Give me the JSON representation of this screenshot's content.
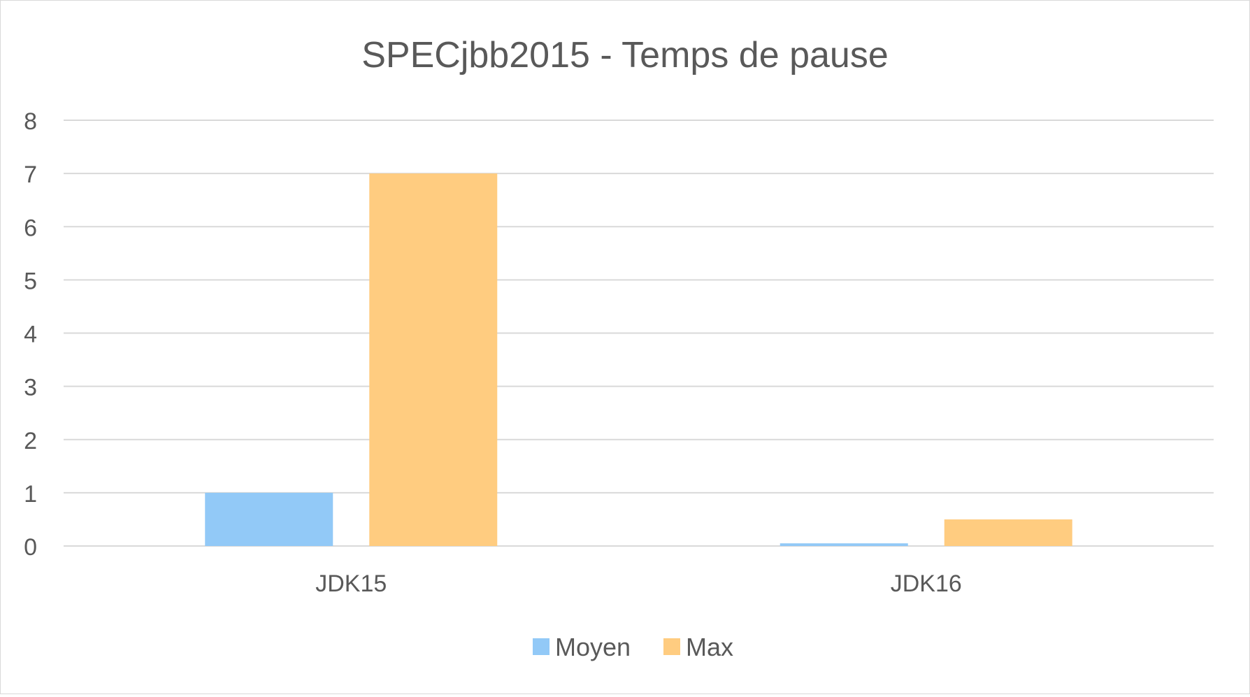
{
  "chart_data": {
    "type": "bar",
    "title": "SPECjbb2015 - Temps de pause",
    "xlabel": "",
    "ylabel": "",
    "categories": [
      "JDK15",
      "JDK16"
    ],
    "series": [
      {
        "name": "Moyen",
        "color": "#92C9F7",
        "values": [
          1,
          0.05
        ]
      },
      {
        "name": "Max",
        "color": "#FFCC80",
        "values": [
          7,
          0.5
        ]
      }
    ],
    "ylim": [
      0,
      8
    ],
    "yticks": [
      "0",
      "1",
      "2",
      "3",
      "4",
      "5",
      "6",
      "7",
      "8"
    ],
    "grid": true,
    "legend_position": "bottom"
  },
  "colors": {
    "gridline": "#D9D9D9",
    "text": "#595959",
    "border": "#D9D9D9"
  }
}
